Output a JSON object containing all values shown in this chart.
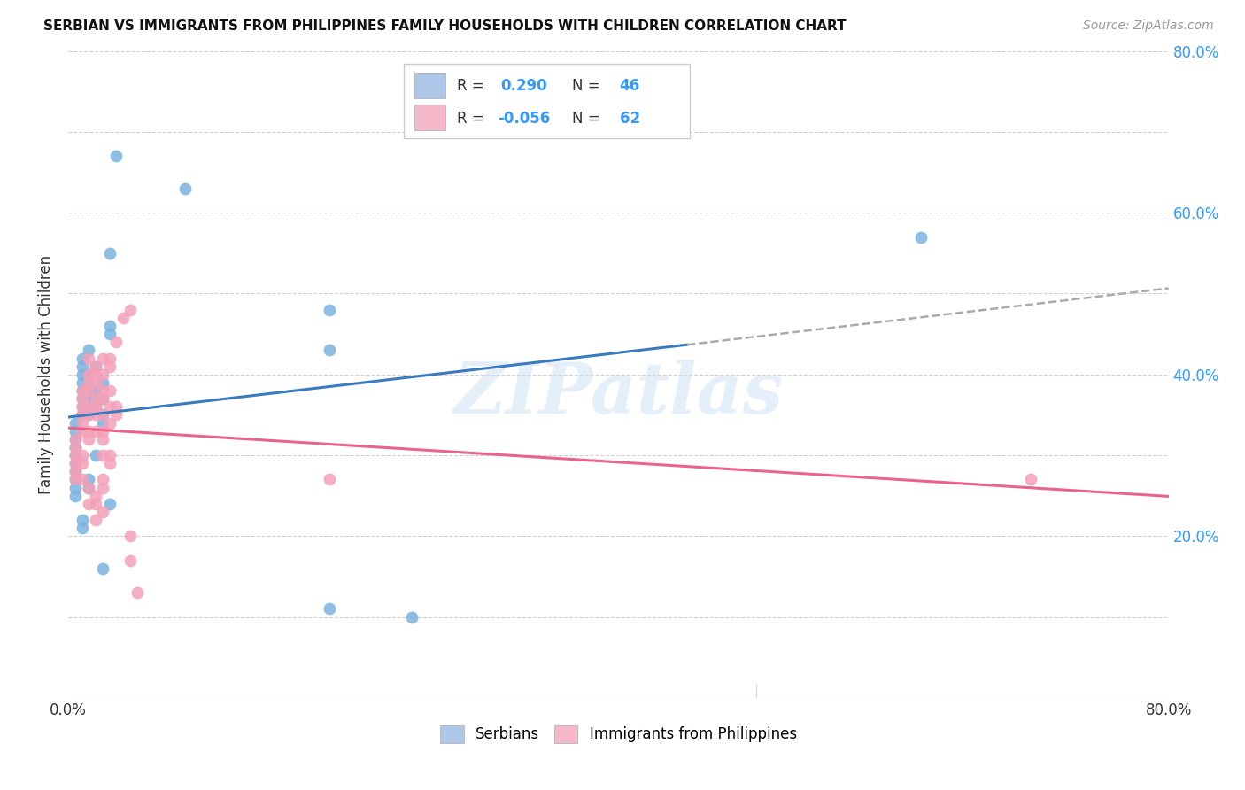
{
  "title": "SERBIAN VS IMMIGRANTS FROM PHILIPPINES FAMILY HOUSEHOLDS WITH CHILDREN CORRELATION CHART",
  "source": "Source: ZipAtlas.com",
  "ylabel": "Family Households with Children",
  "xlim": [
    0.0,
    0.8
  ],
  "ylim": [
    0.0,
    0.8
  ],
  "blue_scatter_color": "#7ab3e0",
  "pink_scatter_color": "#f4a0b8",
  "blue_line_color": "#3a7abf",
  "pink_line_color": "#e8648a",
  "dash_color": "#aaaaaa",
  "accent_blue": "#3399ff",
  "watermark": "ZIPatlas",
  "background_color": "#ffffff",
  "grid_color": "#cccccc",
  "blue_scatter": [
    [
      0.005,
      0.29
    ],
    [
      0.005,
      0.27
    ],
    [
      0.005,
      0.31
    ],
    [
      0.005,
      0.3
    ],
    [
      0.005,
      0.28
    ],
    [
      0.005,
      0.32
    ],
    [
      0.005,
      0.25
    ],
    [
      0.005,
      0.33
    ],
    [
      0.005,
      0.34
    ],
    [
      0.005,
      0.26
    ],
    [
      0.01,
      0.38
    ],
    [
      0.01,
      0.35
    ],
    [
      0.01,
      0.36
    ],
    [
      0.01,
      0.37
    ],
    [
      0.01,
      0.39
    ],
    [
      0.01,
      0.4
    ],
    [
      0.01,
      0.41
    ],
    [
      0.01,
      0.42
    ],
    [
      0.01,
      0.21
    ],
    [
      0.01,
      0.22
    ],
    [
      0.015,
      0.43
    ],
    [
      0.015,
      0.38
    ],
    [
      0.015,
      0.37
    ],
    [
      0.015,
      0.39
    ],
    [
      0.015,
      0.4
    ],
    [
      0.015,
      0.26
    ],
    [
      0.015,
      0.27
    ],
    [
      0.015,
      0.36
    ],
    [
      0.015,
      0.35
    ],
    [
      0.02,
      0.41
    ],
    [
      0.02,
      0.37
    ],
    [
      0.02,
      0.36
    ],
    [
      0.02,
      0.38
    ],
    [
      0.02,
      0.3
    ],
    [
      0.025,
      0.39
    ],
    [
      0.025,
      0.37
    ],
    [
      0.025,
      0.35
    ],
    [
      0.025,
      0.34
    ],
    [
      0.025,
      0.16
    ],
    [
      0.03,
      0.55
    ],
    [
      0.03,
      0.46
    ],
    [
      0.03,
      0.45
    ],
    [
      0.03,
      0.24
    ],
    [
      0.085,
      0.63
    ],
    [
      0.035,
      0.67
    ],
    [
      0.19,
      0.11
    ],
    [
      0.19,
      0.43
    ],
    [
      0.19,
      0.48
    ],
    [
      0.25,
      0.1
    ],
    [
      0.62,
      0.57
    ]
  ],
  "pink_scatter": [
    [
      0.005,
      0.3
    ],
    [
      0.005,
      0.29
    ],
    [
      0.005,
      0.28
    ],
    [
      0.005,
      0.31
    ],
    [
      0.005,
      0.32
    ],
    [
      0.005,
      0.27
    ],
    [
      0.01,
      0.33
    ],
    [
      0.01,
      0.35
    ],
    [
      0.01,
      0.34
    ],
    [
      0.01,
      0.36
    ],
    [
      0.01,
      0.37
    ],
    [
      0.01,
      0.38
    ],
    [
      0.01,
      0.3
    ],
    [
      0.01,
      0.29
    ],
    [
      0.01,
      0.27
    ],
    [
      0.015,
      0.4
    ],
    [
      0.015,
      0.42
    ],
    [
      0.015,
      0.39
    ],
    [
      0.015,
      0.38
    ],
    [
      0.015,
      0.36
    ],
    [
      0.015,
      0.35
    ],
    [
      0.015,
      0.33
    ],
    [
      0.015,
      0.32
    ],
    [
      0.015,
      0.26
    ],
    [
      0.015,
      0.24
    ],
    [
      0.02,
      0.41
    ],
    [
      0.02,
      0.4
    ],
    [
      0.02,
      0.39
    ],
    [
      0.02,
      0.37
    ],
    [
      0.02,
      0.36
    ],
    [
      0.02,
      0.35
    ],
    [
      0.02,
      0.33
    ],
    [
      0.02,
      0.25
    ],
    [
      0.02,
      0.24
    ],
    [
      0.02,
      0.22
    ],
    [
      0.025,
      0.42
    ],
    [
      0.025,
      0.4
    ],
    [
      0.025,
      0.38
    ],
    [
      0.025,
      0.37
    ],
    [
      0.025,
      0.35
    ],
    [
      0.025,
      0.33
    ],
    [
      0.025,
      0.32
    ],
    [
      0.025,
      0.3
    ],
    [
      0.025,
      0.27
    ],
    [
      0.025,
      0.26
    ],
    [
      0.025,
      0.23
    ],
    [
      0.03,
      0.42
    ],
    [
      0.03,
      0.41
    ],
    [
      0.03,
      0.38
    ],
    [
      0.03,
      0.36
    ],
    [
      0.03,
      0.34
    ],
    [
      0.03,
      0.3
    ],
    [
      0.03,
      0.29
    ],
    [
      0.035,
      0.44
    ],
    [
      0.035,
      0.36
    ],
    [
      0.035,
      0.35
    ],
    [
      0.04,
      0.47
    ],
    [
      0.045,
      0.2
    ],
    [
      0.045,
      0.17
    ],
    [
      0.05,
      0.13
    ],
    [
      0.045,
      0.48
    ],
    [
      0.19,
      0.27
    ],
    [
      0.7,
      0.27
    ]
  ]
}
